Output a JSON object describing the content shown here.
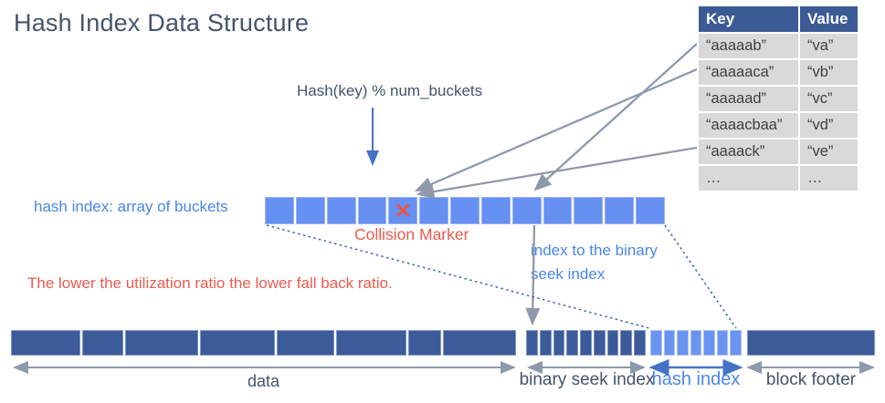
{
  "title": "Hash Index Data Structure",
  "labels": {
    "hash_function": "Hash(key) % num_buckets",
    "bucket_array": "hash index: array of buckets",
    "collision": "Collision Marker",
    "index_note_line1": "index to the binary",
    "index_note_line2": "seek index",
    "utilization_note": "The lower the utilization ratio the lower fall back ratio."
  },
  "key_value_table": {
    "headers": [
      "Key",
      "Value"
    ],
    "rows": [
      [
        "“aaaaab”",
        "“va”"
      ],
      [
        "“aaaaaca”",
        "“vb”"
      ],
      [
        "“aaaaad”",
        "“vc”"
      ],
      [
        "“aaaacbaa”",
        "“vd”"
      ],
      [
        "“aaaack”",
        "“ve”"
      ],
      [
        "…",
        "…"
      ]
    ]
  },
  "bucket_array": {
    "cell_count": 13,
    "collision_cell_index": 4,
    "collision_glyph": "✕"
  },
  "block_sections": [
    {
      "id": "data",
      "label": "data",
      "cell_count": 8
    },
    {
      "id": "binary-seek-index",
      "label": "binary seek index",
      "cell_count": 9
    },
    {
      "id": "hash-index",
      "label": "hash index",
      "cell_count": 7
    },
    {
      "id": "block-footer",
      "label": "block footer",
      "cell_count": 1
    }
  ],
  "colors": {
    "accent_blue": "#4a86e8",
    "arrow_blue": "#4472c4",
    "dark_block": "#3d5a99",
    "light_block": "#6690f2",
    "table_header_blue": "#3c5a96",
    "table_row_gray": "#d9d9d9",
    "alert_red": "#ed5a4e",
    "slate_text": "#44546a",
    "connector_gray": "#8e99ab"
  }
}
